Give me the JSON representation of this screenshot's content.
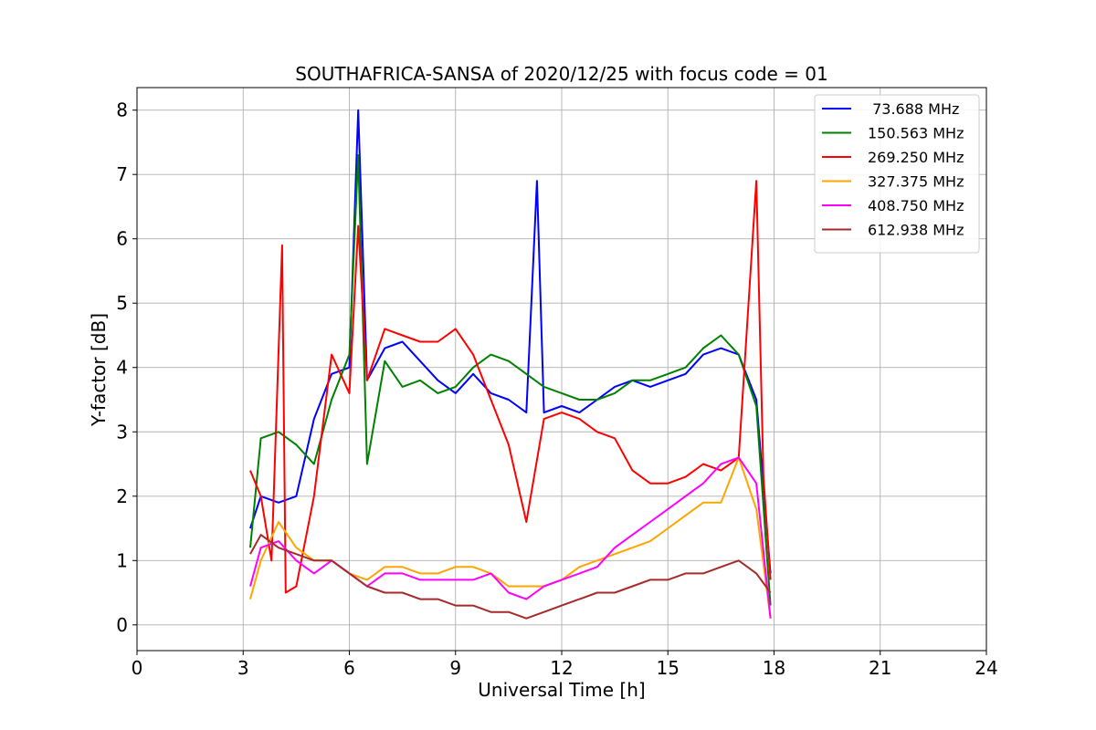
{
  "chart_data": {
    "type": "line",
    "title": "SOUTHAFRICA-SANSA of 2020/12/25 with focus code = 01",
    "xlabel": "Universal Time [h]",
    "ylabel": "Y-factor [dB]",
    "xlim": [
      0,
      24
    ],
    "ylim": [
      -0.4,
      8.35
    ],
    "x_ticks": [
      0,
      3,
      6,
      9,
      12,
      15,
      18,
      21,
      24
    ],
    "y_ticks": [
      0,
      1,
      2,
      3,
      4,
      5,
      6,
      7,
      8
    ],
    "grid": true,
    "legend_position": "top-right",
    "series": [
      {
        "name": " 73.688 MHz",
        "color": "#0000ff",
        "x": [
          3.2,
          3.5,
          4.0,
          4.5,
          5.0,
          5.5,
          6.0,
          6.25,
          6.5,
          7.0,
          7.5,
          8.0,
          8.5,
          9.0,
          9.5,
          10.0,
          10.5,
          11.0,
          11.3,
          11.5,
          12.0,
          12.5,
          13.0,
          13.5,
          14.0,
          14.5,
          15.0,
          15.5,
          16.0,
          16.5,
          17.0,
          17.5,
          17.9
        ],
        "y": [
          1.5,
          2.0,
          1.9,
          2.0,
          3.2,
          3.9,
          4.0,
          8.0,
          3.8,
          4.3,
          4.4,
          4.1,
          3.8,
          3.6,
          3.9,
          3.6,
          3.5,
          3.3,
          6.9,
          3.3,
          3.4,
          3.3,
          3.5,
          3.7,
          3.8,
          3.7,
          3.8,
          3.9,
          4.2,
          4.3,
          4.2,
          3.5,
          0.8
        ]
      },
      {
        "name": "150.563 MHz",
        "color": "#008000",
        "x": [
          3.2,
          3.5,
          4.0,
          4.5,
          5.0,
          5.5,
          6.0,
          6.25,
          6.5,
          7.0,
          7.5,
          8.0,
          8.5,
          9.0,
          9.5,
          10.0,
          10.5,
          11.0,
          11.5,
          12.0,
          12.5,
          13.0,
          13.5,
          14.0,
          14.5,
          15.0,
          15.5,
          16.0,
          16.5,
          17.0,
          17.5,
          17.9
        ],
        "y": [
          1.2,
          2.9,
          3.0,
          2.8,
          2.5,
          3.5,
          4.2,
          7.3,
          2.5,
          4.1,
          3.7,
          3.8,
          3.6,
          3.7,
          4.0,
          4.2,
          4.1,
          3.9,
          3.7,
          3.6,
          3.5,
          3.5,
          3.6,
          3.8,
          3.8,
          3.9,
          4.0,
          4.3,
          4.5,
          4.2,
          3.4,
          0.3
        ]
      },
      {
        "name": "269.250 MHz",
        "color": "#ff0000",
        "x": [
          3.2,
          3.5,
          3.8,
          4.1,
          4.2,
          4.5,
          5.0,
          5.5,
          6.0,
          6.25,
          6.5,
          7.0,
          7.5,
          8.0,
          8.5,
          9.0,
          9.5,
          10.0,
          10.5,
          11.0,
          11.5,
          12.0,
          12.5,
          13.0,
          13.5,
          14.0,
          14.5,
          15.0,
          15.5,
          16.0,
          16.5,
          17.0,
          17.5,
          17.7,
          17.9
        ],
        "y": [
          2.4,
          2.0,
          1.0,
          5.9,
          0.5,
          0.6,
          2.0,
          4.2,
          3.6,
          6.2,
          3.8,
          4.6,
          4.5,
          4.4,
          4.4,
          4.6,
          4.2,
          3.5,
          2.8,
          1.6,
          3.2,
          3.3,
          3.2,
          3.0,
          2.9,
          2.4,
          2.2,
          2.2,
          2.3,
          2.5,
          2.4,
          2.6,
          6.9,
          2.3,
          0.7
        ]
      },
      {
        "name": "327.375 MHz",
        "color": "#ffa500",
        "x": [
          3.2,
          3.5,
          4.0,
          4.5,
          5.0,
          5.5,
          6.0,
          6.5,
          7.0,
          7.5,
          8.0,
          8.5,
          9.0,
          9.5,
          10.0,
          10.5,
          11.0,
          11.5,
          12.0,
          12.5,
          13.0,
          13.5,
          14.0,
          14.5,
          15.0,
          15.5,
          16.0,
          16.5,
          17.0,
          17.5,
          17.9
        ],
        "y": [
          0.4,
          1.0,
          1.6,
          1.2,
          1.0,
          1.0,
          0.8,
          0.7,
          0.9,
          0.9,
          0.8,
          0.8,
          0.9,
          0.9,
          0.8,
          0.6,
          0.6,
          0.6,
          0.7,
          0.9,
          1.0,
          1.1,
          1.2,
          1.3,
          1.5,
          1.7,
          1.9,
          1.9,
          2.6,
          1.8,
          0.1
        ]
      },
      {
        "name": "408.750 MHz",
        "color": "#ff00ff",
        "x": [
          3.2,
          3.5,
          4.0,
          4.5,
          5.0,
          5.5,
          6.0,
          6.5,
          7.0,
          7.5,
          8.0,
          8.5,
          9.0,
          9.5,
          10.0,
          10.5,
          11.0,
          11.5,
          12.0,
          12.5,
          13.0,
          13.5,
          14.0,
          14.5,
          15.0,
          15.5,
          16.0,
          16.5,
          17.0,
          17.5,
          17.9
        ],
        "y": [
          0.6,
          1.2,
          1.3,
          1.0,
          0.8,
          1.0,
          0.8,
          0.6,
          0.8,
          0.8,
          0.7,
          0.7,
          0.7,
          0.7,
          0.8,
          0.5,
          0.4,
          0.6,
          0.7,
          0.8,
          0.9,
          1.2,
          1.4,
          1.6,
          1.8,
          2.0,
          2.2,
          2.5,
          2.6,
          2.2,
          0.1
        ]
      },
      {
        "name": "612.938 MHz",
        "color": "#a52a2a",
        "x": [
          3.2,
          3.5,
          4.0,
          4.5,
          5.0,
          5.5,
          6.0,
          6.5,
          7.0,
          7.5,
          8.0,
          8.5,
          9.0,
          9.5,
          10.0,
          10.5,
          11.0,
          11.5,
          12.0,
          12.5,
          13.0,
          13.5,
          14.0,
          14.5,
          15.0,
          15.5,
          16.0,
          16.5,
          17.0,
          17.5,
          17.9
        ],
        "y": [
          1.1,
          1.4,
          1.2,
          1.1,
          1.0,
          1.0,
          0.8,
          0.6,
          0.5,
          0.5,
          0.4,
          0.4,
          0.3,
          0.3,
          0.2,
          0.2,
          0.1,
          0.2,
          0.3,
          0.4,
          0.5,
          0.5,
          0.6,
          0.7,
          0.7,
          0.8,
          0.8,
          0.9,
          1.0,
          0.8,
          0.5
        ]
      }
    ]
  }
}
